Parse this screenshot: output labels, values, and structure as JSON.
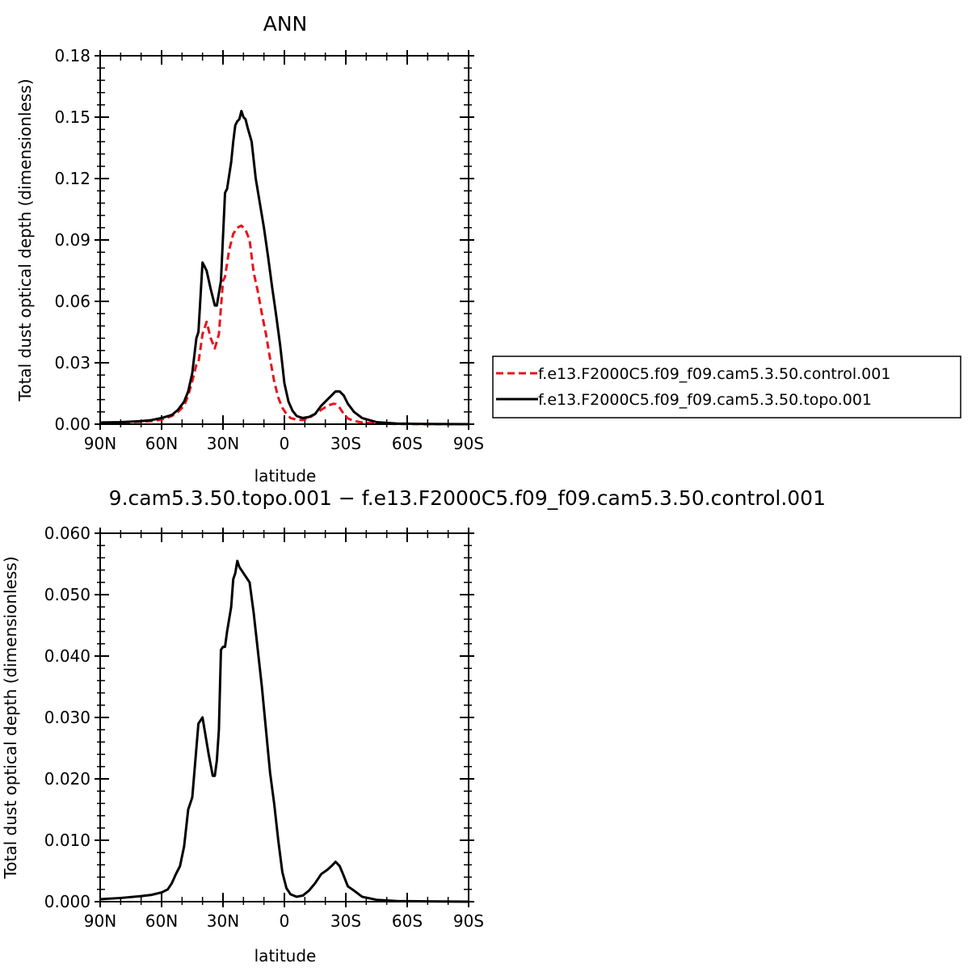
{
  "chart_data": [
    {
      "type": "line",
      "title": "ANN",
      "xlabel": "latitude",
      "ylabel": "Total dust optical depth (dimensionless)",
      "xlim": [
        90,
        -90
      ],
      "ylim": [
        0,
        0.18
      ],
      "x_ticks": [
        90,
        60,
        30,
        0,
        -30,
        -60,
        -90
      ],
      "x_tick_labels": [
        "90N",
        "60N",
        "30N",
        "0",
        "30S",
        "60S",
        "90S"
      ],
      "y_ticks": [
        0,
        0.03,
        0.06,
        0.09,
        0.12,
        0.15,
        0.18
      ],
      "y_tick_labels": [
        "0.00",
        "0.03",
        "0.06",
        "0.09",
        "0.12",
        "0.15",
        "0.18"
      ],
      "grid": false,
      "legend_position": "right",
      "colors": {
        "control": "#e8141c",
        "topo": "#000000"
      },
      "series": [
        {
          "name": "f.e13.F2000C5.f09_f09.cam5.3.50.control.001",
          "style": "dashed",
          "color": "#e8141c",
          "x": [
            90,
            80,
            70,
            65,
            60,
            55,
            52,
            49,
            47,
            45,
            43,
            42,
            40,
            38,
            36,
            34,
            32,
            30,
            29,
            27,
            25,
            23,
            21,
            19,
            17,
            15,
            13,
            11,
            9,
            7,
            5,
            3,
            1,
            -1,
            -3,
            -6,
            -9,
            -12,
            -15,
            -18,
            -21,
            -24,
            -25,
            -27,
            -29,
            -31,
            -34,
            -38,
            -45,
            -55,
            -70,
            -90
          ],
          "y": [
            0.0006,
            0.0008,
            0.0012,
            0.0015,
            0.0022,
            0.004,
            0.006,
            0.009,
            0.014,
            0.021,
            0.029,
            0.03,
            0.044,
            0.05,
            0.042,
            0.037,
            0.044,
            0.07,
            0.072,
            0.085,
            0.093,
            0.096,
            0.097,
            0.095,
            0.09,
            0.074,
            0.065,
            0.054,
            0.044,
            0.032,
            0.021,
            0.013,
            0.008,
            0.005,
            0.003,
            0.0022,
            0.002,
            0.003,
            0.005,
            0.007,
            0.009,
            0.01,
            0.0098,
            0.008,
            0.005,
            0.0028,
            0.0016,
            0.0008,
            0.0003,
            0.0001,
            0.0,
            0.0
          ]
        },
        {
          "name": "f.e13.F2000C5.f09_f09.cam5.3.50.topo.001",
          "style": "solid",
          "color": "#000000",
          "x": [
            90,
            80,
            70,
            65,
            60,
            55,
            52,
            49,
            47,
            45,
            43,
            42,
            40,
            38,
            36,
            34,
            33,
            31,
            29,
            28,
            26,
            25,
            24,
            23,
            22,
            21,
            20,
            19,
            18,
            16,
            14,
            12,
            10,
            8,
            6,
            4,
            2,
            0,
            -2,
            -4,
            -6,
            -9,
            -12,
            -15,
            -18,
            -21,
            -23,
            -25,
            -27,
            -29,
            -31,
            -34,
            -38,
            -45,
            -55,
            -70,
            -90
          ],
          "y": [
            0.0008,
            0.001,
            0.0015,
            0.002,
            0.003,
            0.0045,
            0.007,
            0.011,
            0.016,
            0.025,
            0.042,
            0.045,
            0.079,
            0.075,
            0.066,
            0.058,
            0.058,
            0.07,
            0.113,
            0.115,
            0.128,
            0.138,
            0.146,
            0.148,
            0.149,
            0.153,
            0.15,
            0.149,
            0.145,
            0.138,
            0.12,
            0.108,
            0.096,
            0.082,
            0.067,
            0.053,
            0.038,
            0.02,
            0.011,
            0.0065,
            0.004,
            0.003,
            0.0035,
            0.005,
            0.009,
            0.012,
            0.014,
            0.016,
            0.016,
            0.014,
            0.01,
            0.006,
            0.003,
            0.001,
            0.0003,
            0.0001,
            0.0
          ]
        }
      ]
    },
    {
      "type": "line",
      "title": "9.cam5.3.50.topo.001 − f.e13.F2000C5.f09_f09.cam5.3.50.control.001",
      "xlabel": "latitude",
      "ylabel": "Total dust optical depth (dimensionless)",
      "xlim": [
        90,
        -90
      ],
      "ylim": [
        0,
        0.06
      ],
      "x_ticks": [
        90,
        60,
        30,
        0,
        -30,
        -60,
        -90
      ],
      "x_tick_labels": [
        "90N",
        "60N",
        "30N",
        "0",
        "30S",
        "60S",
        "90S"
      ],
      "y_ticks": [
        0,
        0.01,
        0.02,
        0.03,
        0.04,
        0.05,
        0.06
      ],
      "y_tick_labels": [
        "0.000",
        "0.010",
        "0.020",
        "0.030",
        "0.040",
        "0.050",
        "0.060"
      ],
      "grid": false,
      "series": [
        {
          "style": "solid",
          "color": "#000000",
          "x": [
            90,
            80,
            70,
            65,
            60,
            57,
            55,
            53,
            51,
            49,
            47,
            45,
            44,
            42,
            41,
            40,
            39,
            37,
            35,
            34,
            33,
            32,
            31,
            30,
            29,
            28,
            27,
            26,
            25,
            24,
            23,
            22,
            21,
            20,
            19,
            18,
            17,
            15,
            13,
            11,
            9,
            7,
            5,
            3,
            1,
            -1,
            -3,
            -6,
            -9,
            -12,
            -15,
            -18,
            -21,
            -23,
            -25,
            -27,
            -29,
            -31,
            -34,
            -38,
            -45,
            -55,
            -70,
            -90
          ],
          "y": [
            0.0004,
            0.0006,
            0.0009,
            0.0011,
            0.0015,
            0.002,
            0.003,
            0.0045,
            0.0058,
            0.009,
            0.015,
            0.017,
            0.021,
            0.029,
            0.0295,
            0.03,
            0.028,
            0.024,
            0.0205,
            0.0205,
            0.023,
            0.028,
            0.041,
            0.0415,
            0.0415,
            0.044,
            0.046,
            0.048,
            0.0525,
            0.0535,
            0.0555,
            0.0545,
            0.054,
            0.0535,
            0.053,
            0.0525,
            0.052,
            0.047,
            0.041,
            0.035,
            0.028,
            0.021,
            0.016,
            0.01,
            0.0048,
            0.0022,
            0.0012,
            0.0008,
            0.001,
            0.0018,
            0.003,
            0.0045,
            0.0052,
            0.0058,
            0.0065,
            0.0058,
            0.0042,
            0.0025,
            0.0018,
            0.0008,
            0.0003,
            0.0001,
            5e-05,
            0.0
          ]
        }
      ]
    }
  ]
}
